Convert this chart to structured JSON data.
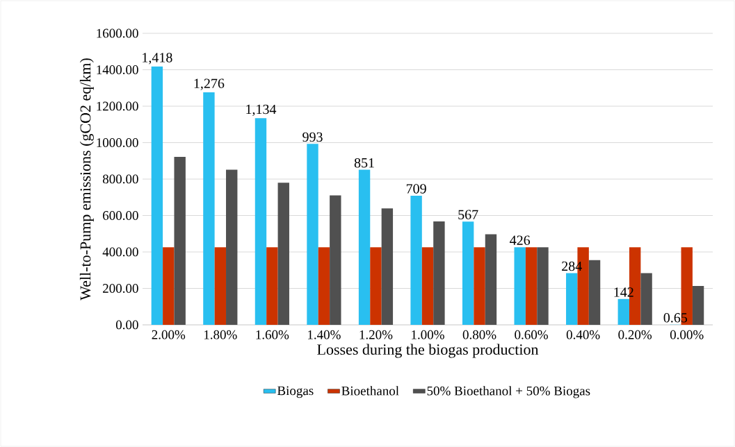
{
  "chart_data": {
    "type": "bar",
    "xlabel": "Losses during the biogas production",
    "ylabel": "Well-to-Pump emissions (gCO2 eq/km)",
    "categories": [
      "2.00%",
      "1.80%",
      "1.60%",
      "1.40%",
      "1.20%",
      "1.00%",
      "0.80%",
      "0.60%",
      "0.40%",
      "0.20%",
      "0.00%"
    ],
    "series": [
      {
        "name": "Biogas",
        "color": "#29bff0",
        "values": [
          1418,
          1276,
          1134,
          993,
          851,
          709,
          567,
          426,
          284,
          142,
          0.65
        ],
        "value_labels": [
          "1,418",
          "1,276",
          "1,134",
          "993",
          "851",
          "709",
          "567",
          "426",
          "284",
          "142",
          "0.65"
        ]
      },
      {
        "name": "Bioethanol",
        "color": "#cc3300",
        "values": [
          426,
          426,
          426,
          426,
          426,
          426,
          426,
          426,
          426,
          426,
          426
        ]
      },
      {
        "name": "50% Bioethanol + 50% Biogas",
        "color": "#505050",
        "values": [
          922,
          851,
          780,
          710,
          639,
          568,
          497,
          426,
          355,
          284,
          213
        ]
      }
    ],
    "ylim": [
      0,
      1600
    ],
    "yticks": [
      {
        "value": 0,
        "label": "0.00"
      },
      {
        "value": 200,
        "label": "200.00"
      },
      {
        "value": 400,
        "label": "400.00"
      },
      {
        "value": 600,
        "label": "600.00"
      },
      {
        "value": 800,
        "label": "800.00"
      },
      {
        "value": 1000,
        "label": "1000.00"
      },
      {
        "value": 1200,
        "label": "1200.00"
      },
      {
        "value": 1400,
        "label": "1400.00"
      },
      {
        "value": 1600,
        "label": "1600.00"
      }
    ],
    "grid": "y",
    "legend": "bottom"
  }
}
